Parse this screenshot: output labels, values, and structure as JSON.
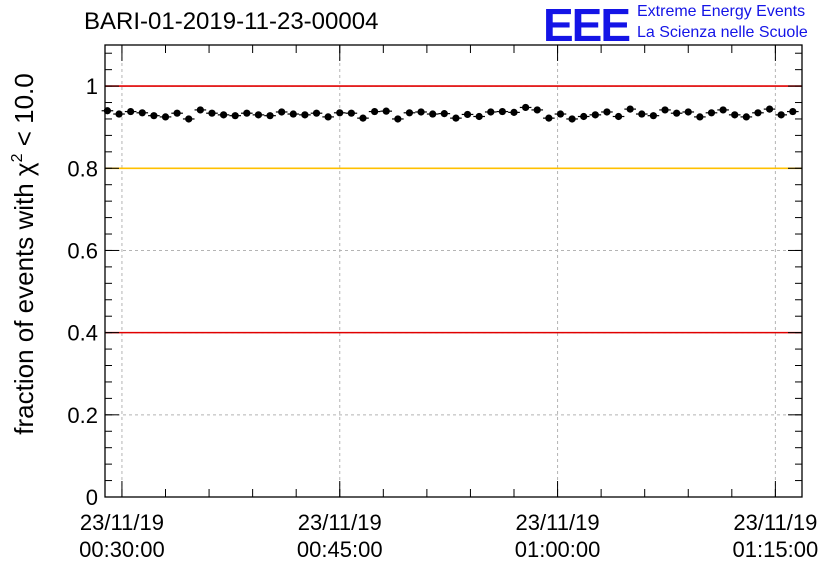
{
  "header": {
    "title": "BARI-01-2019-11-23-00004",
    "logo_mark": "EEE",
    "logo_line1": "Extreme Energy Events",
    "logo_line2": "La Scienza nelle Scuole"
  },
  "colors": {
    "logo": "#1414e6",
    "red_threshold": "#e00000",
    "yellow_threshold": "#ffc000",
    "points": "#000000",
    "grid": "#b4b4b4"
  },
  "chart_data": {
    "type": "scatter",
    "title": "BARI-01-2019-11-23-00004",
    "ylabel_prefix": "fraction of events with ",
    "ylabel_symbol": "χ",
    "ylabel_sup": "2",
    "ylabel_suffix": " < 10.0",
    "xlabel": "",
    "x_range": [
      "00:28:50",
      "01:16:50"
    ],
    "ylim": [
      0,
      1.1
    ],
    "y_ticks": [
      "0",
      "0.2",
      "0.4",
      "0.6",
      "0.8",
      "1"
    ],
    "y_tick_values": [
      0,
      0.2,
      0.4,
      0.6,
      0.8,
      1.0
    ],
    "x_ticks": [
      {
        "time": "00:30:00",
        "date": "23/11/19"
      },
      {
        "time": "00:45:00",
        "date": "23/11/19"
      },
      {
        "time": "01:00:00",
        "date": "23/11/19"
      },
      {
        "time": "01:15:00",
        "date": "23/11/19"
      }
    ],
    "grid": true,
    "reference_lines": [
      {
        "y": 1.0,
        "color": "#e00000"
      },
      {
        "y": 0.8,
        "color": "#ffc000"
      },
      {
        "y": 0.4,
        "color": "#e00000"
      }
    ],
    "bin_width_minutes": 0.8,
    "x": [
      "00:29:00",
      "00:29:48",
      "00:30:36",
      "00:31:24",
      "00:32:12",
      "00:33:00",
      "00:33:48",
      "00:34:36",
      "00:35:24",
      "00:36:12",
      "00:37:00",
      "00:37:48",
      "00:38:36",
      "00:39:24",
      "00:40:12",
      "00:41:00",
      "00:41:48",
      "00:42:36",
      "00:43:24",
      "00:44:12",
      "00:45:00",
      "00:45:48",
      "00:46:36",
      "00:47:24",
      "00:48:12",
      "00:49:00",
      "00:49:48",
      "00:50:36",
      "00:51:24",
      "00:52:12",
      "00:53:00",
      "00:53:48",
      "00:54:36",
      "00:55:24",
      "00:56:12",
      "00:57:00",
      "00:57:48",
      "00:58:36",
      "00:59:24",
      "01:00:12",
      "01:01:00",
      "01:01:48",
      "01:02:36",
      "01:03:24",
      "01:04:12",
      "01:05:00",
      "01:05:48",
      "01:06:36",
      "01:07:24",
      "01:08:12",
      "01:09:00",
      "01:09:48",
      "01:10:36",
      "01:11:24",
      "01:12:12",
      "01:13:00",
      "01:13:48",
      "01:14:36",
      "01:15:24",
      "01:16:12"
    ],
    "y": [
      0.94,
      0.932,
      0.938,
      0.935,
      0.928,
      0.925,
      0.934,
      0.92,
      0.942,
      0.934,
      0.93,
      0.928,
      0.934,
      0.93,
      0.928,
      0.937,
      0.932,
      0.93,
      0.934,
      0.925,
      0.935,
      0.934,
      0.922,
      0.938,
      0.939,
      0.92,
      0.935,
      0.937,
      0.932,
      0.933,
      0.922,
      0.931,
      0.926,
      0.937,
      0.938,
      0.936,
      0.948,
      0.942,
      0.922,
      0.932,
      0.92,
      0.926,
      0.93,
      0.937,
      0.926,
      0.944,
      0.932,
      0.928,
      0.942,
      0.934,
      0.937,
      0.925,
      0.935,
      0.942,
      0.93,
      0.925,
      0.935,
      0.944,
      0.93,
      0.938
    ],
    "y_err": 0.008
  }
}
